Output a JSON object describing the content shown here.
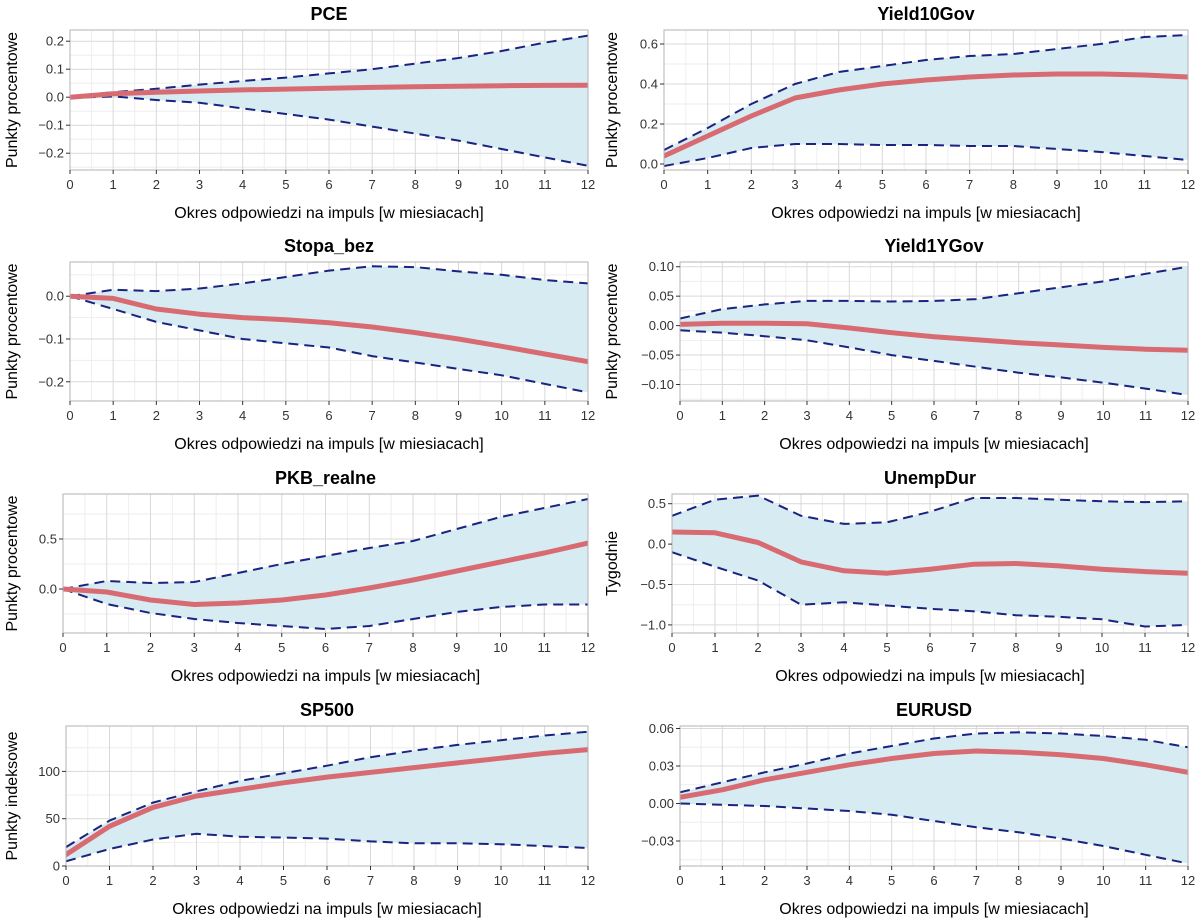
{
  "colors": {
    "band_fill": "#d7ebf3",
    "band_line": "#1a237e",
    "irf_line": "#d86a72",
    "grid_major": "#d9d9d9",
    "grid_minor": "#eeeeee",
    "frame": "#b3b3b3"
  },
  "chart_data": [
    {
      "type": "line",
      "title": "PCE",
      "xlabel": "Okres odpowiedzi na impuls [w miesiacach]",
      "ylabel": "Punkty procentowe",
      "x": [
        0,
        1,
        2,
        3,
        4,
        5,
        6,
        7,
        8,
        9,
        10,
        11,
        12
      ],
      "xlim": [
        0,
        12
      ],
      "ylim": [
        -0.26,
        0.24
      ],
      "yticks": [
        -0.2,
        -0.1,
        0.0,
        0.1,
        0.2
      ],
      "ytick_labels": [
        "−0.2",
        "−0.1",
        "0.0",
        "0.1",
        "0.2"
      ],
      "series": [
        {
          "role": "upper",
          "values": [
            0.003,
            0.018,
            0.03,
            0.045,
            0.058,
            0.07,
            0.085,
            0.1,
            0.12,
            0.14,
            0.165,
            0.195,
            0.22
          ]
        },
        {
          "role": "lower",
          "values": [
            -0.003,
            0.003,
            -0.01,
            -0.02,
            -0.04,
            -0.06,
            -0.08,
            -0.105,
            -0.13,
            -0.155,
            -0.185,
            -0.215,
            -0.245
          ]
        },
        {
          "role": "irf",
          "values": [
            0.0,
            0.012,
            0.018,
            0.022,
            0.026,
            0.029,
            0.032,
            0.035,
            0.037,
            0.039,
            0.041,
            0.042,
            0.043
          ]
        }
      ]
    },
    {
      "type": "line",
      "title": "Yield10Gov",
      "xlabel": "Okres odpowiedzi na impuls [w miesiacach]",
      "ylabel": "Punkty procentowe",
      "x": [
        0,
        1,
        2,
        3,
        4,
        5,
        6,
        7,
        8,
        9,
        10,
        11,
        12
      ],
      "xlim": [
        0,
        12
      ],
      "ylim": [
        -0.03,
        0.67
      ],
      "yticks": [
        0.0,
        0.2,
        0.4,
        0.6
      ],
      "ytick_labels": [
        "0.0",
        "0.2",
        "0.4",
        "0.6"
      ],
      "series": [
        {
          "role": "upper",
          "values": [
            0.07,
            0.18,
            0.3,
            0.4,
            0.46,
            0.49,
            0.52,
            0.54,
            0.55,
            0.575,
            0.6,
            0.635,
            0.645
          ]
        },
        {
          "role": "lower",
          "values": [
            -0.01,
            0.03,
            0.08,
            0.1,
            0.1,
            0.095,
            0.095,
            0.09,
            0.09,
            0.075,
            0.06,
            0.04,
            0.02
          ]
        },
        {
          "role": "irf",
          "values": [
            0.04,
            0.14,
            0.24,
            0.33,
            0.37,
            0.4,
            0.42,
            0.435,
            0.445,
            0.45,
            0.45,
            0.445,
            0.435
          ]
        }
      ]
    },
    {
      "type": "line",
      "title": "Stopa_bez",
      "xlabel": "Okres odpowiedzi na impuls [w miesiacach]",
      "ylabel": "Punkty procentowe",
      "x": [
        0,
        1,
        2,
        3,
        4,
        5,
        6,
        7,
        8,
        9,
        10,
        11,
        12
      ],
      "xlim": [
        0,
        12
      ],
      "ylim": [
        -0.245,
        0.08
      ],
      "yticks": [
        -0.2,
        -0.1,
        0.0
      ],
      "ytick_labels": [
        "−0.2",
        "−0.1",
        "0.0"
      ],
      "series": [
        {
          "role": "upper",
          "values": [
            0.0,
            0.015,
            0.012,
            0.018,
            0.03,
            0.045,
            0.06,
            0.07,
            0.068,
            0.058,
            0.05,
            0.038,
            0.03
          ]
        },
        {
          "role": "lower",
          "values": [
            0.0,
            -0.03,
            -0.06,
            -0.08,
            -0.1,
            -0.11,
            -0.12,
            -0.14,
            -0.155,
            -0.17,
            -0.185,
            -0.205,
            -0.225
          ]
        },
        {
          "role": "irf",
          "values": [
            0.0,
            -0.005,
            -0.03,
            -0.042,
            -0.05,
            -0.055,
            -0.062,
            -0.072,
            -0.085,
            -0.1,
            -0.117,
            -0.135,
            -0.153
          ]
        }
      ]
    },
    {
      "type": "line",
      "title": "Yield1YGov",
      "xlabel": "Okres odpowiedzi na impuls [w miesiacach]",
      "ylabel": "Punkty procentowe",
      "x": [
        0,
        1,
        2,
        3,
        4,
        5,
        6,
        7,
        8,
        9,
        10,
        11,
        12
      ],
      "xlim": [
        0,
        12
      ],
      "ylim": [
        -0.128,
        0.108
      ],
      "yticks": [
        -0.1,
        -0.05,
        0.0,
        0.05,
        0.1
      ],
      "ytick_labels": [
        "−0.10",
        "−0.05",
        "0.00",
        "0.05",
        "0.10"
      ],
      "series": [
        {
          "role": "upper",
          "values": [
            0.012,
            0.028,
            0.036,
            0.042,
            0.042,
            0.041,
            0.042,
            0.045,
            0.055,
            0.065,
            0.075,
            0.088,
            0.1
          ]
        },
        {
          "role": "lower",
          "values": [
            -0.008,
            -0.012,
            -0.018,
            -0.025,
            -0.037,
            -0.05,
            -0.06,
            -0.07,
            -0.08,
            -0.088,
            -0.097,
            -0.107,
            -0.118
          ]
        },
        {
          "role": "irf",
          "values": [
            0.002,
            0.004,
            0.004,
            0.003,
            -0.004,
            -0.012,
            -0.019,
            -0.024,
            -0.029,
            -0.033,
            -0.037,
            -0.04,
            -0.042
          ]
        }
      ]
    },
    {
      "type": "line",
      "title": "PKB_realne",
      "xlabel": "Okres odpowiedzi na impuls [w miesiacach]",
      "ylabel": "Punkty procentowe",
      "x": [
        0,
        1,
        2,
        3,
        4,
        5,
        6,
        7,
        8,
        9,
        10,
        11,
        12
      ],
      "xlim": [
        0,
        12
      ],
      "ylim": [
        -0.44,
        0.95
      ],
      "yticks": [
        0.0,
        0.5
      ],
      "ytick_labels": [
        "0.0",
        "0.5"
      ],
      "series": [
        {
          "role": "upper",
          "values": [
            0.0,
            0.08,
            0.06,
            0.07,
            0.16,
            0.25,
            0.33,
            0.41,
            0.48,
            0.6,
            0.72,
            0.81,
            0.9
          ]
        },
        {
          "role": "lower",
          "values": [
            0.0,
            -0.15,
            -0.24,
            -0.3,
            -0.34,
            -0.37,
            -0.4,
            -0.37,
            -0.3,
            -0.23,
            -0.18,
            -0.155,
            -0.155
          ]
        },
        {
          "role": "irf",
          "values": [
            0.0,
            -0.03,
            -0.11,
            -0.155,
            -0.14,
            -0.11,
            -0.06,
            0.01,
            0.09,
            0.18,
            0.27,
            0.36,
            0.46
          ]
        }
      ]
    },
    {
      "type": "line",
      "title": "UnempDur",
      "xlabel": "Okres odpowiedzi na impuls [w miesiacach]",
      "ylabel": "Tygodnie",
      "x": [
        0,
        1,
        2,
        3,
        4,
        5,
        6,
        7,
        8,
        9,
        10,
        11,
        12
      ],
      "xlim": [
        0,
        12
      ],
      "ylim": [
        -1.1,
        0.62
      ],
      "yticks": [
        -1.0,
        -0.5,
        0.0,
        0.5
      ],
      "ytick_labels": [
        "−1.0",
        "−0.5",
        "0.0",
        "0.5"
      ],
      "series": [
        {
          "role": "upper",
          "values": [
            0.35,
            0.55,
            0.6,
            0.35,
            0.25,
            0.27,
            0.4,
            0.57,
            0.57,
            0.55,
            0.53,
            0.52,
            0.53
          ]
        },
        {
          "role": "lower",
          "values": [
            -0.1,
            -0.28,
            -0.45,
            -0.75,
            -0.72,
            -0.76,
            -0.8,
            -0.83,
            -0.88,
            -0.9,
            -0.93,
            -1.02,
            -1.0
          ]
        },
        {
          "role": "irf",
          "values": [
            0.15,
            0.14,
            0.02,
            -0.22,
            -0.33,
            -0.36,
            -0.31,
            -0.25,
            -0.24,
            -0.27,
            -0.31,
            -0.34,
            -0.36
          ]
        }
      ]
    },
    {
      "type": "line",
      "title": "SP500",
      "xlabel": "Okres odpowiedzi na impuls [w miesiacach]",
      "ylabel": "Punkty indeksowe",
      "x": [
        0,
        1,
        2,
        3,
        4,
        5,
        6,
        7,
        8,
        9,
        10,
        11,
        12
      ],
      "xlim": [
        0,
        12
      ],
      "ylim": [
        0,
        148
      ],
      "yticks": [
        0,
        50,
        100
      ],
      "ytick_labels": [
        "0",
        "50",
        "100"
      ],
      "series": [
        {
          "role": "upper",
          "values": [
            20,
            48,
            67,
            79,
            90,
            98,
            106,
            115,
            122,
            128,
            133,
            138,
            142
          ]
        },
        {
          "role": "lower",
          "values": [
            5,
            18,
            28,
            34,
            31,
            30,
            29,
            26,
            24,
            24,
            23,
            21,
            19
          ]
        },
        {
          "role": "irf",
          "values": [
            12,
            42,
            62,
            74,
            81,
            88,
            94,
            99,
            104,
            109,
            114,
            119,
            123
          ]
        }
      ]
    },
    {
      "type": "line",
      "title": "EURUSD",
      "xlabel": "Okres odpowiedzi na impuls [w miesiacach]",
      "ylabel": "",
      "x": [
        0,
        1,
        2,
        3,
        4,
        5,
        6,
        7,
        8,
        9,
        10,
        11,
        12
      ],
      "xlim": [
        0,
        12
      ],
      "ylim": [
        -0.05,
        0.062
      ],
      "yticks": [
        -0.03,
        0.0,
        0.03,
        0.06
      ],
      "ytick_labels": [
        "−0.03",
        "0.00",
        "0.03",
        "0.06"
      ],
      "series": [
        {
          "role": "upper",
          "values": [
            0.009,
            0.017,
            0.025,
            0.032,
            0.04,
            0.046,
            0.052,
            0.056,
            0.057,
            0.056,
            0.054,
            0.051,
            0.045
          ]
        },
        {
          "role": "lower",
          "values": [
            0.0,
            -0.001,
            -0.002,
            -0.004,
            -0.006,
            -0.009,
            -0.014,
            -0.019,
            -0.023,
            -0.028,
            -0.034,
            -0.041,
            -0.048
          ]
        },
        {
          "role": "irf",
          "values": [
            0.005,
            0.011,
            0.019,
            0.025,
            0.031,
            0.036,
            0.04,
            0.042,
            0.041,
            0.039,
            0.036,
            0.031,
            0.025
          ]
        }
      ]
    }
  ]
}
